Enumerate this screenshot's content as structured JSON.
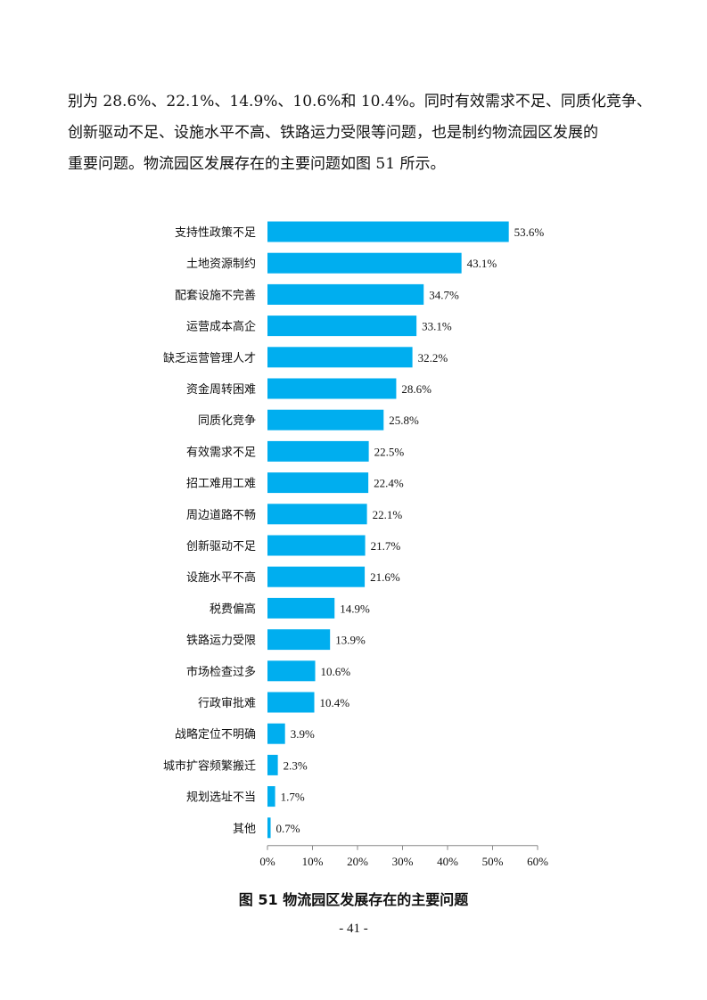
{
  "paragraph": {
    "lines": [
      "别为 28.6%、22.1%、14.9%、10.6%和 10.4%。同时有效需求不足、同质化竞争、",
      "创新驱动不足、设施水平不高、铁路运力受限等问题，也是制约物流园区发展的",
      "重要问题。物流园区发展存在的主要问题如图 51 所示。"
    ]
  },
  "chart_data": {
    "type": "bar",
    "orientation": "horizontal",
    "categories": [
      "支持性政策不足",
      "土地资源制约",
      "配套设施不完善",
      "运营成本高企",
      "缺乏运营管理人才",
      "资金周转困难",
      "同质化竞争",
      "有效需求不足",
      "招工难用工难",
      "周边道路不畅",
      "创新驱动不足",
      "设施水平不高",
      "税费偏高",
      "铁路运力受限",
      "市场检查过多",
      "行政审批难",
      "战略定位不明确",
      "城市扩容频繁搬迁",
      "规划选址不当",
      "其他"
    ],
    "values": [
      53.6,
      43.1,
      34.7,
      33.1,
      32.2,
      28.6,
      25.8,
      22.5,
      22.4,
      22.1,
      21.7,
      21.6,
      14.9,
      13.9,
      10.6,
      10.4,
      3.9,
      2.3,
      1.7,
      0.7
    ],
    "value_labels": [
      "53.6%",
      "43.1%",
      "34.7%",
      "33.1%",
      "32.2%",
      "28.6%",
      "25.8%",
      "22.5%",
      "22.4%",
      "22.1%",
      "21.7%",
      "21.6%",
      "14.9%",
      "13.9%",
      "10.6%",
      "10.4%",
      "3.9%",
      "2.3%",
      "1.7%",
      "0.7%"
    ],
    "xlim": [
      0,
      60
    ],
    "x_ticks": [
      "0%",
      "10%",
      "20%",
      "30%",
      "40%",
      "50%",
      "60%"
    ],
    "bar_color": "#00AEEF",
    "grid": false
  },
  "caption": "图 51  物流园区发展存在的主要问题",
  "page_number": "- 41 -"
}
